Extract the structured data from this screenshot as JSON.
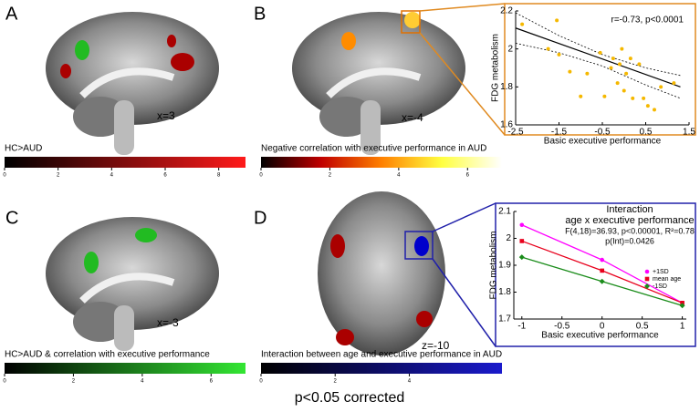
{
  "panels": [
    {
      "letter": "A",
      "slice": "x=3",
      "colorbar": {
        "title": "HC>AUD",
        "colors": [
          "#000000",
          "#ff1a1a"
        ],
        "lim": [
          0,
          9
        ],
        "ticks": [
          0,
          2,
          4,
          6,
          8
        ]
      }
    },
    {
      "letter": "B",
      "slice": "x=-4",
      "colorbar": {
        "title": "Negative correlation with executive performance in AUD",
        "colors": [
          "#000000",
          "#c00000",
          "#ff8000",
          "#ffff40",
          "#ffffff"
        ],
        "lim": [
          0,
          7
        ],
        "ticks": [
          0,
          2,
          4,
          6
        ]
      }
    },
    {
      "letter": "C",
      "slice": "x=-3",
      "colorbar": {
        "title": "HC>AUD & correlation with executive performance",
        "colors": [
          "#000000",
          "#33e633"
        ],
        "lim": [
          0,
          7
        ],
        "ticks": [
          0,
          2,
          4,
          6
        ]
      }
    },
    {
      "letter": "D",
      "slice": "z=-10",
      "colorbar": {
        "title": "Interaction between age and executive performance in AUD",
        "colors": [
          "#000000",
          "#1a1acc"
        ],
        "lim": [
          0,
          6.5
        ],
        "ticks": [
          0,
          2,
          4
        ]
      }
    }
  ],
  "footer": "p<0.05 corrected",
  "chart_data": [
    {
      "type": "scatter",
      "annotation": "r=-0.73, p<0.0001",
      "x_label": "Basic executive performance",
      "y_label": "FDG metabolism",
      "color": "#f5b800",
      "x": [
        -2.35,
        -1.75,
        -1.55,
        -1.5,
        -1.25,
        -1.0,
        -0.85,
        -0.55,
        -0.45,
        -0.3,
        -0.25,
        -0.15,
        -0.1,
        -0.05,
        0.0,
        0.05,
        0.15,
        0.2,
        0.35,
        0.45,
        0.55,
        0.7,
        0.85,
        1.15
      ],
      "values": [
        2.13,
        2.0,
        2.15,
        1.97,
        1.88,
        1.75,
        1.87,
        1.98,
        1.75,
        1.9,
        1.95,
        1.82,
        1.92,
        2.0,
        1.78,
        1.87,
        1.95,
        1.74,
        1.92,
        1.74,
        1.7,
        1.68,
        1.8,
        1.82
      ],
      "fit": {
        "x": [
          -2.5,
          1.3
        ],
        "values": [
          2.11,
          1.8
        ]
      },
      "ci_upper": {
        "x": [
          -2.5,
          -1.5,
          -0.5,
          0.5,
          1.3
        ],
        "values": [
          2.19,
          2.07,
          1.97,
          1.9,
          1.86
        ]
      },
      "ci_lower": {
        "x": [
          -2.5,
          -1.5,
          -0.5,
          0.5,
          1.3
        ],
        "values": [
          2.03,
          1.98,
          1.91,
          1.81,
          1.74
        ]
      },
      "xlim": [
        -2.5,
        1.5
      ],
      "xticks": [
        -2.5,
        -1.5,
        -0.5,
        0.5,
        1.5
      ],
      "ylim": [
        1.6,
        2.2
      ],
      "yticks": [
        1.6,
        1.8,
        2,
        2.2
      ]
    },
    {
      "type": "line",
      "title": "Interaction",
      "subtitle": "age x executive performance",
      "annotations": [
        "F(4,18)=36.93, p<0.00001, R²=0.78",
        "p(Int)=0.0426"
      ],
      "x_label": "Basic executive performance",
      "y_label": "FDG metabolism",
      "x": [
        -1,
        0,
        1
      ],
      "series": [
        {
          "name": "+1SD",
          "color": "#ff00ff",
          "values": [
            2.05,
            1.92,
            1.76
          ]
        },
        {
          "name": "mean age",
          "color": "#e8001c",
          "values": [
            1.99,
            1.88,
            1.76
          ]
        },
        {
          "name": "-1SD",
          "color": "#1a8c1a",
          "values": [
            1.93,
            1.84,
            1.75
          ]
        }
      ],
      "xlim": [
        -1.1,
        1.05
      ],
      "xticks": [
        -1,
        -0.5,
        0,
        0.5,
        1
      ],
      "ylim": [
        1.7,
        2.1
      ],
      "yticks": [
        1.7,
        1.8,
        1.9,
        2,
        2.1
      ]
    }
  ]
}
